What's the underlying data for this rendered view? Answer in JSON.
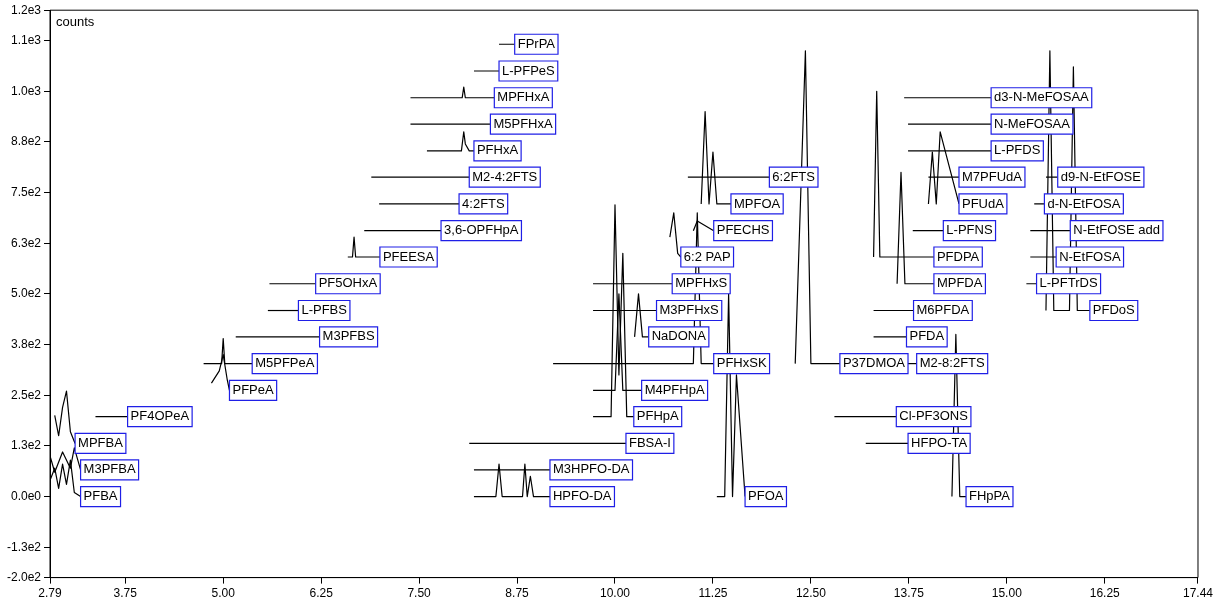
{
  "chart_data": {
    "type": "line",
    "ylabel": "counts",
    "xlim": [
      2.79,
      17.44
    ],
    "xticks": [
      2.79,
      3.75,
      {
        "value": 5,
        "label": "5.00"
      },
      6.25,
      {
        "value": 7.5,
        "label": "7.50"
      },
      8.75,
      {
        "value": 10,
        "label": "10.00"
      },
      11.25,
      {
        "value": 12.5,
        "label": "12.50"
      },
      13.75,
      {
        "value": 15,
        "label": "15.00"
      },
      16.25,
      17.44
    ],
    "ylim": [
      -200,
      1200
    ],
    "yticks": [
      {
        "value": -200,
        "label": "-2.0e2"
      },
      {
        "value": -125,
        "label": "-1.3e2"
      },
      {
        "value": 0,
        "label": "0.0e0"
      },
      {
        "value": 125,
        "label": "1.3e2"
      },
      {
        "value": 250,
        "label": "2.5e2"
      },
      {
        "value": 375,
        "label": "3.8e2"
      },
      {
        "value": 500,
        "label": "5.0e2"
      },
      {
        "value": 625,
        "label": "6.3e2"
      },
      {
        "value": 750,
        "label": "7.5e2"
      },
      {
        "value": 875,
        "label": "8.8e2"
      },
      {
        "value": 1000,
        "label": "1.0e3"
      },
      {
        "value": 1125,
        "label": "1.1e3"
      },
      {
        "value": 1200,
        "label": "1.2e3"
      }
    ],
    "grid": false,
    "legend": false,
    "marker": "none",
    "line_style": "solid",
    "series": [
      {
        "name": "PFBA",
        "color": "#000000",
        "x": [
          2.79,
          2.85,
          2.9,
          2.95,
          3.0,
          3.05,
          3.1,
          3.18
        ],
        "values": [
          40,
          70,
          20,
          80,
          30,
          90,
          10,
          0
        ]
      },
      {
        "name": "M3PFBA",
        "color": "#000000",
        "x": [
          2.79,
          2.85,
          2.95,
          3.05,
          3.1,
          3.18
        ],
        "values": [
          100,
          60,
          110,
          70,
          120,
          66
        ]
      },
      {
        "name": "MPFBA",
        "color": "#000000",
        "x": [
          2.85,
          2.9,
          2.95,
          3.0,
          3.05,
          3.11
        ],
        "values": [
          200,
          150,
          220,
          260,
          160,
          131
        ]
      },
      {
        "name": "PF4OPeA",
        "color": "#000000",
        "x": [
          3.37,
          3.78
        ],
        "values": [
          197,
          197
        ]
      },
      {
        "name": "PFPeA",
        "color": "#000000",
        "x": [
          4.85,
          4.95,
          5.0,
          5.05,
          5.08
        ],
        "values": [
          280,
          310,
          350,
          290,
          262
        ]
      },
      {
        "name": "M5PFPeA",
        "color": "#000000",
        "x": [
          4.75,
          4.98,
          5.0,
          5.02,
          5.37
        ],
        "values": [
          328,
          328,
          390,
          328,
          328
        ]
      },
      {
        "name": "M3PFBS",
        "color": "#000000",
        "x": [
          5.16,
          6.23
        ],
        "values": [
          394,
          394
        ]
      },
      {
        "name": "L-PFBS",
        "color": "#000000",
        "x": [
          5.57,
          5.96
        ],
        "values": [
          459,
          459
        ]
      },
      {
        "name": "PF5OHxA",
        "color": "#000000",
        "x": [
          5.59,
          6.18
        ],
        "values": [
          525,
          525
        ]
      },
      {
        "name": "PFEESA",
        "color": "#000000",
        "x": [
          6.59,
          6.65,
          6.67,
          6.69,
          7.0
        ],
        "values": [
          591,
          591,
          640,
          591,
          591
        ]
      },
      {
        "name": "3,6-OPFHpA",
        "color": "#000000",
        "x": [
          6.8,
          7.78
        ],
        "values": [
          656,
          656
        ]
      },
      {
        "name": "4:2FTS",
        "color": "#000000",
        "x": [
          6.99,
          8.01
        ],
        "values": [
          722,
          722
        ]
      },
      {
        "name": "M2-4:2FTS",
        "color": "#000000",
        "x": [
          6.89,
          8.14
        ],
        "values": [
          788,
          788
        ]
      },
      {
        "name": "PFHxA",
        "color": "#000000",
        "x": [
          7.6,
          8.04,
          8.07,
          8.09,
          8.14,
          8.2
        ],
        "values": [
          853,
          853,
          900,
          870,
          853,
          853
        ]
      },
      {
        "name": "M5PFHxA",
        "color": "#000000",
        "x": [
          7.39,
          8.41
        ],
        "values": [
          919,
          919
        ]
      },
      {
        "name": "MPFHxA",
        "color": "#000000",
        "x": [
          7.39,
          8.05,
          8.07,
          8.09,
          8.46
        ],
        "values": [
          984,
          984,
          1010,
          984,
          984
        ]
      },
      {
        "name": "L-PFPeS",
        "color": "#000000",
        "x": [
          8.2,
          8.52
        ],
        "values": [
          1050,
          1050
        ]
      },
      {
        "name": "FPrPA",
        "color": "#000000",
        "x": [
          8.52,
          8.72
        ],
        "values": [
          1116,
          1116
        ]
      },
      {
        "name": "HPFO-DA",
        "color": "#000000",
        "x": [
          8.2,
          8.48,
          8.52,
          8.56,
          8.6,
          8.82,
          8.85,
          8.88,
          8.92,
          8.96,
          9.17
        ],
        "values": [
          0,
          0,
          80,
          0,
          0,
          0,
          80,
          0,
          50,
          0,
          0
        ]
      },
      {
        "name": "M3HPFO-DA",
        "color": "#000000",
        "x": [
          8.2,
          9.17
        ],
        "values": [
          66,
          66
        ]
      },
      {
        "name": "FBSA-I",
        "color": "#000000",
        "x": [
          8.14,
          10.14
        ],
        "values": [
          131,
          131
        ]
      },
      {
        "name": "PFHpA",
        "color": "#000000",
        "x": [
          9.72,
          9.95,
          10.0,
          10.05,
          10.1,
          10.15,
          10.24
        ],
        "values": [
          197,
          197,
          720,
          300,
          600,
          197,
          197
        ]
      },
      {
        "name": "M4PFHpA",
        "color": "#000000",
        "x": [
          9.72,
          10.0,
          10.05,
          10.1,
          10.34
        ],
        "values": [
          262,
          262,
          500,
          262,
          262
        ]
      },
      {
        "name": "PFHxSK",
        "color": "#000000",
        "x": [
          9.21,
          11.0,
          11.05,
          11.1,
          11.26
        ],
        "values": [
          328,
          328,
          700,
          328,
          328
        ]
      },
      {
        "name": "NaDONA",
        "color": "#000000",
        "x": [
          10.25,
          10.3,
          10.35,
          10.43
        ],
        "values": [
          394,
          500,
          394,
          394
        ]
      },
      {
        "name": "M3PFHxS",
        "color": "#000000",
        "x": [
          9.72,
          10.53
        ],
        "values": [
          459,
          459
        ]
      },
      {
        "name": "MPFHxS",
        "color": "#000000",
        "x": [
          9.72,
          10.73
        ],
        "values": [
          525,
          525
        ]
      },
      {
        "name": "6:2 PAP",
        "color": "#000000",
        "x": [
          10.7,
          10.75,
          10.8,
          10.84
        ],
        "values": [
          640,
          700,
          600,
          591
        ]
      },
      {
        "name": "PFECHS",
        "color": "#000000",
        "x": [
          11.0,
          11.05,
          11.26
        ],
        "values": [
          656,
          680,
          656
        ]
      },
      {
        "name": "MPFOA",
        "color": "#000000",
        "x": [
          11.1,
          11.15,
          11.2,
          11.25,
          11.3,
          11.48
        ],
        "values": [
          722,
          950,
          722,
          850,
          722,
          722
        ]
      },
      {
        "name": "6:2FTS",
        "color": "#000000",
        "x": [
          10.93,
          11.97
        ],
        "values": [
          788,
          788
        ]
      },
      {
        "name": "PFOA",
        "color": "#000000",
        "x": [
          11.3,
          11.4,
          11.45,
          11.5,
          11.55,
          11.66
        ],
        "values": [
          0,
          0,
          500,
          0,
          300,
          0
        ]
      },
      {
        "name": "P37DMOA",
        "color": "#000000",
        "x": [
          12.3,
          12.43,
          12.5,
          12.87
        ],
        "values": [
          328,
          1100,
          328,
          328
        ]
      },
      {
        "name": "M2-8:2FTS",
        "color": "#000000",
        "x": [
          13.72,
          13.85
        ],
        "values": [
          328,
          328
        ]
      },
      {
        "name": "HFPO-TA",
        "color": "#000000",
        "x": [
          13.2,
          13.74
        ],
        "values": [
          131,
          131
        ]
      },
      {
        "name": "Cl-PF3ONS",
        "color": "#000000",
        "x": [
          12.8,
          13.59
        ],
        "values": [
          197,
          197
        ]
      },
      {
        "name": "PFDA",
        "color": "#000000",
        "x": [
          13.3,
          13.72
        ],
        "values": [
          394,
          394
        ]
      },
      {
        "name": "M6PFDA",
        "color": "#000000",
        "x": [
          13.3,
          13.81
        ],
        "values": [
          459,
          459
        ]
      },
      {
        "name": "MPFDA",
        "color": "#000000",
        "x": [
          13.6,
          13.65,
          13.7,
          14.07
        ],
        "values": [
          525,
          800,
          525,
          525
        ]
      },
      {
        "name": "PFDPA",
        "color": "#000000",
        "x": [
          13.3,
          13.34,
          13.38,
          14.07
        ],
        "values": [
          591,
          1000,
          591,
          591
        ]
      },
      {
        "name": "L-PFNS",
        "color": "#000000",
        "x": [
          13.8,
          14.19
        ],
        "values": [
          656,
          656
        ]
      },
      {
        "name": "PFUdA",
        "color": "#000000",
        "x": [
          14.0,
          14.05,
          14.1,
          14.15,
          14.39
        ],
        "values": [
          722,
          850,
          722,
          900,
          722
        ]
      },
      {
        "name": "M7PFUdA",
        "color": "#000000",
        "x": [
          14.0,
          14.39
        ],
        "values": [
          788,
          788
        ]
      },
      {
        "name": "L-PFDS",
        "color": "#000000",
        "x": [
          13.74,
          14.8
        ],
        "values": [
          853,
          853
        ]
      },
      {
        "name": "N-MeFOSAA",
        "color": "#000000",
        "x": [
          13.74,
          14.8
        ],
        "values": [
          919,
          919
        ]
      },
      {
        "name": "d3-N-MeFOSAA",
        "color": "#000000",
        "x": [
          13.69,
          14.8
        ],
        "values": [
          984,
          984
        ]
      },
      {
        "name": "FHpPA",
        "color": "#000000",
        "x": [
          14.3,
          14.35,
          14.4,
          14.48
        ],
        "values": [
          0,
          400,
          0,
          0
        ]
      },
      {
        "name": "L-PFTrDS",
        "color": "#000000",
        "x": [
          15.25,
          15.38
        ],
        "values": [
          525,
          525
        ]
      },
      {
        "name": "PFDoS",
        "color": "#000000",
        "x": [
          15.5,
          15.55,
          15.6,
          15.8,
          15.85,
          15.9,
          16.06
        ],
        "values": [
          459,
          1100,
          459,
          459,
          1060,
          459,
          459
        ]
      },
      {
        "name": "N-EtFOSA",
        "color": "#000000",
        "x": [
          15.3,
          15.63
        ],
        "values": [
          591,
          591
        ]
      },
      {
        "name": "d-N-EtFOSA",
        "color": "#000000",
        "x": [
          15.35,
          15.48
        ],
        "values": [
          722,
          722
        ]
      },
      {
        "name": "d9-N-EtFOSE",
        "color": "#000000",
        "x": [
          15.5,
          15.65
        ],
        "values": [
          788,
          788
        ]
      },
      {
        "name": "N-EtFOSE add",
        "color": "#000000",
        "x": [
          15.3,
          15.81
        ],
        "values": [
          656,
          656
        ]
      }
    ]
  }
}
